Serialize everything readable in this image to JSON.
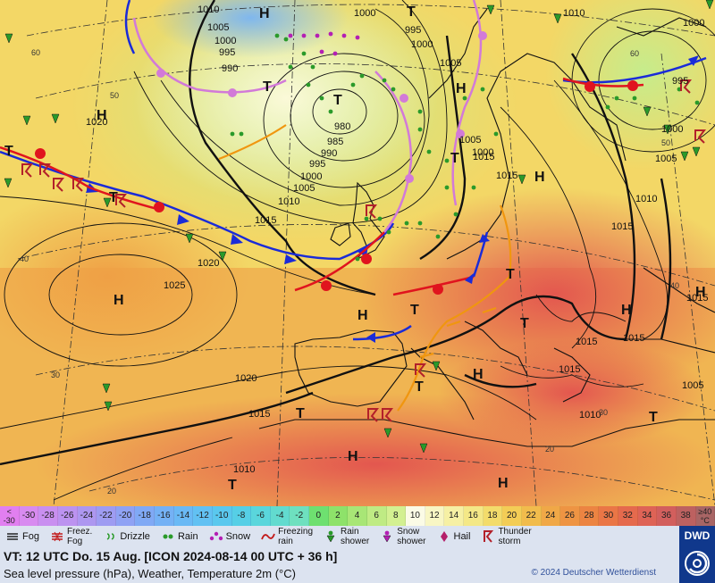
{
  "map": {
    "high_low_letters": [
      {
        "id": "H1",
        "letter": "H"
      },
      {
        "id": "H2",
        "letter": "H"
      },
      {
        "id": "H3",
        "letter": "H"
      },
      {
        "id": "H4",
        "letter": "H"
      },
      {
        "id": "H5",
        "letter": "H"
      },
      {
        "id": "H6",
        "letter": "H"
      },
      {
        "id": "H7",
        "letter": "H"
      },
      {
        "id": "H8",
        "letter": "H"
      },
      {
        "id": "H9",
        "letter": "H"
      },
      {
        "id": "H10",
        "letter": "H"
      },
      {
        "id": "H11",
        "letter": "H"
      },
      {
        "id": "T1",
        "letter": "T"
      },
      {
        "id": "T2",
        "letter": "T"
      },
      {
        "id": "T3",
        "letter": "T"
      },
      {
        "id": "T4",
        "letter": "T"
      },
      {
        "id": "T5",
        "letter": "T"
      },
      {
        "id": "T6",
        "letter": "T"
      },
      {
        "id": "T7",
        "letter": "T"
      },
      {
        "id": "T8",
        "letter": "T"
      },
      {
        "id": "T9",
        "letter": "T"
      },
      {
        "id": "T10",
        "letter": "T"
      },
      {
        "id": "T11",
        "letter": "T"
      },
      {
        "id": "T12",
        "letter": "T"
      },
      {
        "id": "T13",
        "letter": "T"
      }
    ],
    "isobar_labels": [
      "1010",
      "1005",
      "1000",
      "995",
      "990",
      "1000",
      "995",
      "1000",
      "1005",
      "1010",
      "1020",
      "980",
      "985",
      "990",
      "995",
      "1000",
      "1005",
      "1010",
      "1015",
      "1020",
      "1025",
      "1020",
      "1015",
      "1010",
      "1015",
      "1015",
      "1010",
      "1015",
      "1015",
      "1015",
      "1005",
      "1010",
      "1015",
      "1005",
      "1000",
      "995",
      "1000",
      "1005",
      "1015",
      "1000"
    ],
    "latitude_labels": [
      "60",
      "50",
      "40",
      "30",
      "20",
      "60",
      "50",
      "40",
      "30",
      "20"
    ],
    "front_types": [
      "cold-front",
      "warm-front",
      "occluded-front",
      "trough"
    ]
  },
  "colorbar": {
    "cells": [
      {
        "label": "<\n-30",
        "color": "#e17ff0"
      },
      {
        "label": "-30",
        "color": "#d88bf0"
      },
      {
        "label": "-28",
        "color": "#c98ff0"
      },
      {
        "label": "-26",
        "color": "#bc93f0"
      },
      {
        "label": "-24",
        "color": "#ad97f0"
      },
      {
        "label": "-22",
        "color": "#9e9cf2"
      },
      {
        "label": "-20",
        "color": "#8fa2f4"
      },
      {
        "label": "-18",
        "color": "#80a9f5"
      },
      {
        "label": "-16",
        "color": "#74b1f5"
      },
      {
        "label": "-14",
        "color": "#6ab9f5"
      },
      {
        "label": "-12",
        "color": "#62c1f3"
      },
      {
        "label": "-10",
        "color": "#5ac8ee"
      },
      {
        "label": "-8",
        "color": "#56cfe6"
      },
      {
        "label": "-6",
        "color": "#5ad6dc"
      },
      {
        "label": "-4",
        "color": "#62dbcf"
      },
      {
        "label": "-2",
        "color": "#6ee0bf"
      },
      {
        "label": "0",
        "color": "#6ee070"
      },
      {
        "label": "2",
        "color": "#8ee26a"
      },
      {
        "label": "4",
        "color": "#a8e676"
      },
      {
        "label": "6",
        "color": "#bfeb84"
      },
      {
        "label": "8",
        "color": "#d3f091"
      },
      {
        "label": "10",
        "color": "#fbfbe6"
      },
      {
        "label": "12",
        "color": "#f8f6c4"
      },
      {
        "label": "14",
        "color": "#f6f0a4"
      },
      {
        "label": "16",
        "color": "#f4e887"
      },
      {
        "label": "18",
        "color": "#f3dc6b"
      },
      {
        "label": "20",
        "color": "#f3cd56"
      },
      {
        "label": "22",
        "color": "#f1bc4c"
      },
      {
        "label": "24",
        "color": "#f0a847"
      },
      {
        "label": "26",
        "color": "#ee9443"
      },
      {
        "label": "28",
        "color": "#ec8442"
      },
      {
        "label": "30",
        "color": "#ea7646"
      },
      {
        "label": "32",
        "color": "#e56a4d"
      },
      {
        "label": "34",
        "color": "#de6356"
      },
      {
        "label": "36",
        "color": "#d25f5d"
      },
      {
        "label": "38",
        "color": "#bd6160"
      },
      {
        "label": "≥40\n°C",
        "color": "#a86565"
      }
    ]
  },
  "legend": {
    "items": [
      {
        "label": "Fog",
        "icon": "fog-icon"
      },
      {
        "label": "Freez.\nFog",
        "icon": "freezing-fog-icon"
      },
      {
        "label": "Drizzle",
        "icon": "drizzle-icon"
      },
      {
        "label": "Rain",
        "icon": "rain-icon"
      },
      {
        "label": "Snow",
        "icon": "snow-icon"
      },
      {
        "label": "Freezing\nrain",
        "icon": "freezing-rain-icon"
      },
      {
        "label": "Rain\nshower",
        "icon": "rain-shower-icon"
      },
      {
        "label": "Snow\nshower",
        "icon": "snow-shower-icon"
      },
      {
        "label": "Hail",
        "icon": "hail-icon"
      },
      {
        "label": "Thunder\nstorm",
        "icon": "thunderstorm-icon"
      }
    ]
  },
  "footer": {
    "valid_time": "VT: 12 UTC Do.  15 Aug. [ICON 2024-08-14  00 UTC + 36 h]",
    "subtitle": "Sea level pressure (hPa), Weather, Temperature 2m (°C)",
    "copyright": "© 2024 Deutscher Wetterdienst",
    "logo_text": "DWD"
  },
  "colors": {
    "cold_front": "#1a2bd8",
    "warm_front": "#e0141e",
    "occlusion": "#d27ad8",
    "trough": "#f0960f",
    "isobar": "#111111",
    "legend_bg": "#dce3f0",
    "logo_bg": "#10388c"
  }
}
